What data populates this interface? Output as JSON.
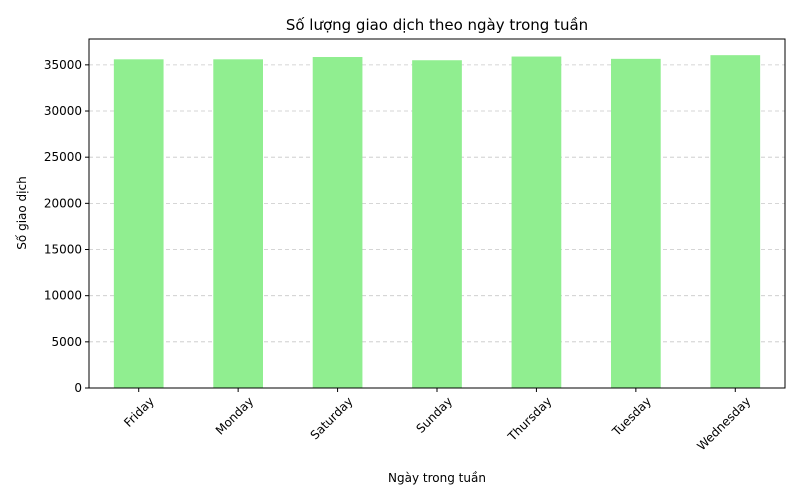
{
  "chart_data": {
    "type": "bar",
    "title": "Số lượng giao dịch theo ngày trong tuần",
    "xlabel": "Ngày trong tuần",
    "ylabel": "Số giao dịch",
    "categories": [
      "Friday",
      "Monday",
      "Saturday",
      "Sunday",
      "Thursday",
      "Tuesday",
      "Wednesday"
    ],
    "values": [
      35600,
      35600,
      35850,
      35500,
      35900,
      35650,
      36050
    ],
    "ylim": [
      0,
      37800
    ],
    "yticks": [
      0,
      5000,
      10000,
      15000,
      20000,
      25000,
      30000,
      35000
    ],
    "grid": "y-dashed",
    "bar_color": "#90ee90",
    "grid_color": "#c8c8c8"
  }
}
